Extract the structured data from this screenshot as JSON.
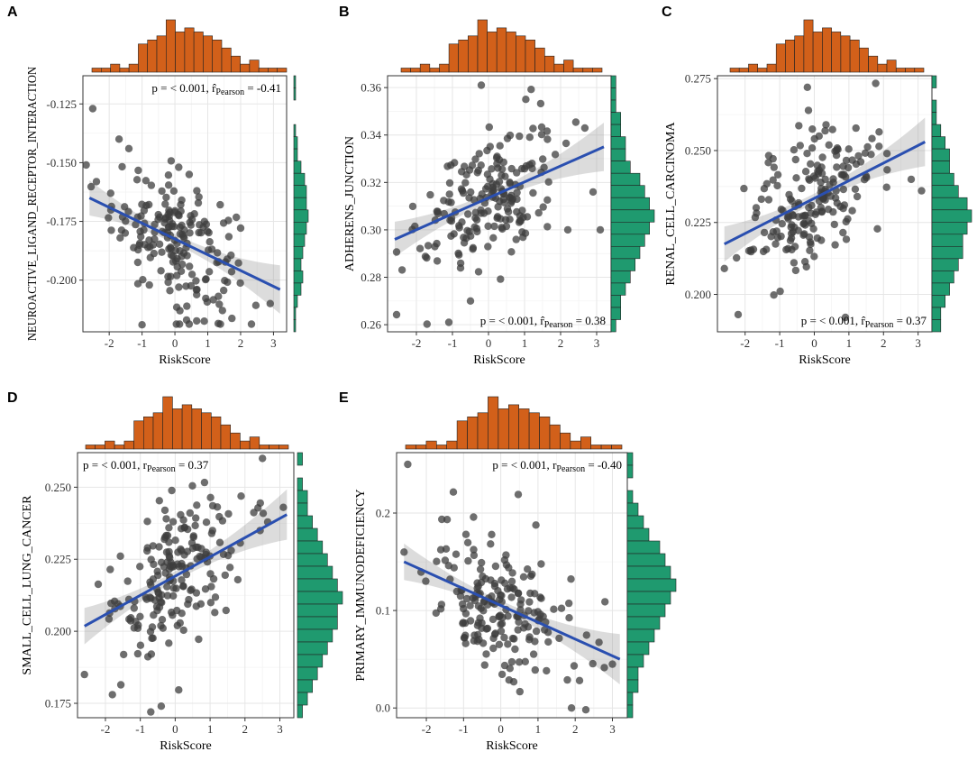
{
  "chart_data": [
    {
      "panel": "A",
      "type": "scatter",
      "xlabel": "RiskScore",
      "ylabel": "NEUROACTIVE_LIGAND_RECEPTOR_INTERACTION",
      "xlim": [
        -2.8,
        3.4
      ],
      "ylim": [
        -0.222,
        -0.113
      ],
      "xticks": [
        -2,
        -1,
        0,
        1,
        2,
        3
      ],
      "xtick_labels": [
        "-2",
        "-1",
        "0",
        "1",
        "2",
        "3"
      ],
      "yticks": [
        -0.125,
        -0.15,
        -0.175,
        -0.2
      ],
      "ytick_labels": [
        "-0.125",
        "-0.150",
        "-0.175",
        "-0.200"
      ],
      "annotation": {
        "p_text": "p = < 0.001,",
        "r_symbol": "r̂",
        "r_sub": "Pearson",
        "r_value": "= -0.41",
        "position": "top-right"
      },
      "fit_line": {
        "x": [
          -2.6,
          3.2
        ],
        "y": [
          -0.165,
          -0.204
        ]
      },
      "slope_sign": -1,
      "center_y": -0.18,
      "spread": 0.014,
      "outliers": [
        [
          -2.5,
          -0.127
        ],
        [
          -2.7,
          -0.151
        ],
        [
          -1.7,
          -0.14
        ],
        [
          -1.4,
          -0.144
        ],
        [
          -1.0,
          -0.219
        ],
        [
          2.9,
          -0.21
        ]
      ],
      "hist_top": [
        1,
        1,
        2,
        1,
        2,
        7,
        8,
        9,
        13,
        10,
        11,
        10,
        9,
        8,
        6,
        4,
        2,
        3,
        1,
        1,
        1
      ],
      "hist_right": [
        1,
        1,
        0,
        0,
        1,
        2,
        2,
        4,
        6,
        7,
        7,
        8,
        7,
        6,
        5,
        4,
        5,
        4,
        2,
        1,
        1
      ]
    },
    {
      "panel": "B",
      "type": "scatter",
      "xlabel": "RiskScore",
      "ylabel": "ADHERENS_JUNCTION",
      "xlim": [
        -2.8,
        3.4
      ],
      "ylim": [
        0.257,
        0.365
      ],
      "xticks": [
        -2,
        -1,
        0,
        1,
        2,
        3
      ],
      "xtick_labels": [
        "-2",
        "-1",
        "0",
        "1",
        "2",
        "3"
      ],
      "yticks": [
        0.26,
        0.28,
        0.3,
        0.32,
        0.34,
        0.36
      ],
      "ytick_labels": [
        "0.26",
        "0.28",
        "0.30",
        "0.32",
        "0.34",
        "0.36"
      ],
      "annotation": {
        "p_text": "p = < 0.001,",
        "r_symbol": "r̂",
        "r_sub": "Pearson",
        "r_value": "= 0.38",
        "position": "bottom-right"
      },
      "fit_line": {
        "x": [
          -2.6,
          3.2
        ],
        "y": [
          0.296,
          0.335
        ]
      },
      "slope_sign": 1,
      "center_y": 0.315,
      "spread": 0.014,
      "outliers": [
        [
          -0.2,
          0.361
        ],
        [
          -1.1,
          0.261
        ],
        [
          -0.5,
          0.27
        ],
        [
          3.1,
          0.3
        ],
        [
          2.9,
          0.316
        ],
        [
          2.2,
          0.3
        ]
      ],
      "hist_top": [
        1,
        1,
        2,
        1,
        2,
        7,
        8,
        9,
        13,
        10,
        11,
        10,
        9,
        8,
        6,
        4,
        2,
        3,
        1,
        1,
        1
      ],
      "hist_right": [
        1,
        1,
        1,
        2,
        2,
        3,
        3,
        4,
        6,
        7,
        8,
        9,
        8,
        7,
        6,
        5,
        4,
        3,
        2,
        2,
        1
      ]
    },
    {
      "panel": "C",
      "type": "scatter",
      "xlabel": "RiskScore",
      "ylabel": "RENAL_CELL_CARCINOMA",
      "xlim": [
        -2.8,
        3.4
      ],
      "ylim": [
        0.187,
        0.276
      ],
      "xticks": [
        -2,
        -1,
        0,
        1,
        2,
        3
      ],
      "xtick_labels": [
        "-2",
        "-1",
        "0",
        "1",
        "2",
        "3"
      ],
      "yticks": [
        0.2,
        0.225,
        0.25,
        0.275
      ],
      "ytick_labels": [
        "0.200",
        "0.225",
        "0.250",
        "0.275"
      ],
      "annotation": {
        "p_text": "p = < 0.001,",
        "r_symbol": "r̂",
        "r_sub": "Pearson",
        "r_value": "= 0.37",
        "position": "bottom-right"
      },
      "fit_line": {
        "x": [
          -2.6,
          3.2
        ],
        "y": [
          0.2175,
          0.253
        ]
      },
      "slope_sign": 1,
      "center_y": 0.233,
      "spread": 0.012,
      "outliers": [
        [
          -2.2,
          0.193
        ],
        [
          0.9,
          0.192
        ],
        [
          -0.2,
          0.272
        ],
        [
          3.1,
          0.236
        ],
        [
          2.8,
          0.24
        ],
        [
          -2.6,
          0.209
        ]
      ],
      "hist_top": [
        1,
        1,
        2,
        1,
        2,
        7,
        8,
        9,
        13,
        10,
        11,
        10,
        9,
        8,
        6,
        4,
        2,
        3,
        1,
        1,
        1
      ],
      "hist_right": [
        1,
        0,
        1,
        1,
        2,
        3,
        4,
        4,
        5,
        6,
        8,
        9,
        8,
        7,
        7,
        6,
        5,
        4,
        3,
        2,
        2
      ]
    },
    {
      "panel": "D",
      "type": "scatter",
      "xlabel": "RiskScore",
      "ylabel": "SMALL_CELL_LUNG_CANCER",
      "xlim": [
        -2.8,
        3.4
      ],
      "ylim": [
        0.17,
        0.262
      ],
      "xticks": [
        -2,
        -1,
        0,
        1,
        2,
        3
      ],
      "xtick_labels": [
        "-2",
        "-1",
        "0",
        "1",
        "2",
        "3"
      ],
      "yticks": [
        0.175,
        0.2,
        0.225,
        0.25
      ],
      "ytick_labels": [
        "0.175",
        "0.200",
        "0.225",
        "0.250"
      ],
      "annotation": {
        "p_text": "p = < 0.001,",
        "r_symbol": "r",
        "r_sub": "Pearson",
        "r_value": "= 0.37",
        "position": "top-left"
      },
      "fit_line": {
        "x": [
          -2.6,
          3.2
        ],
        "y": [
          0.2018,
          0.2405
        ]
      },
      "slope_sign": 1,
      "center_y": 0.218,
      "spread": 0.012,
      "outliers": [
        [
          -1.8,
          0.178
        ],
        [
          -0.4,
          0.174
        ],
        [
          -0.7,
          0.172
        ],
        [
          -2.6,
          0.185
        ],
        [
          3.1,
          0.243
        ],
        [
          2.5,
          0.26
        ]
      ],
      "hist_top": [
        1,
        1,
        2,
        1,
        2,
        7,
        8,
        9,
        13,
        10,
        11,
        10,
        9,
        8,
        6,
        4,
        2,
        3,
        1,
        1,
        1
      ],
      "hist_right": [
        1,
        0,
        1,
        2,
        2,
        3,
        4,
        5,
        6,
        7,
        8,
        9,
        8,
        8,
        7,
        6,
        5,
        4,
        3,
        2,
        1
      ]
    },
    {
      "panel": "E",
      "type": "scatter",
      "xlabel": "RiskScore",
      "ylabel": "PRIMARY_IMMUNODEFICIENCY",
      "xlim": [
        -2.8,
        3.4
      ],
      "ylim": [
        -0.01,
        0.262
      ],
      "xticks": [
        -2,
        -1,
        0,
        1,
        2,
        3
      ],
      "xtick_labels": [
        "-2",
        "-1",
        "0",
        "1",
        "2",
        "3"
      ],
      "yticks": [
        0.0,
        0.1,
        0.2
      ],
      "ytick_labels": [
        "0.0",
        "0.1",
        "0.2"
      ],
      "annotation": {
        "p_text": "p = < 0.001,",
        "r_symbol": "r",
        "r_sub": "Pearson",
        "r_value": "= -0.40",
        "position": "top-right"
      },
      "fit_line": {
        "x": [
          -2.6,
          3.2
        ],
        "y": [
          0.15,
          0.05
        ]
      },
      "slope_sign": -1,
      "center_y": 0.1,
      "spread": 0.038,
      "outliers": [
        [
          1.9,
          0.0
        ],
        [
          -2.5,
          0.25
        ],
        [
          3.0,
          0.045
        ],
        [
          2.8,
          0.109
        ],
        [
          -2.6,
          0.16
        ]
      ],
      "hist_top": [
        1,
        1,
        2,
        1,
        2,
        7,
        8,
        9,
        13,
        10,
        11,
        10,
        9,
        8,
        6,
        4,
        2,
        3,
        1,
        1,
        1
      ],
      "hist_right": [
        1,
        1,
        0,
        1,
        2,
        3,
        4,
        6,
        7,
        8,
        9,
        8,
        7,
        6,
        5,
        4,
        3,
        2,
        2,
        1,
        1
      ]
    }
  ]
}
